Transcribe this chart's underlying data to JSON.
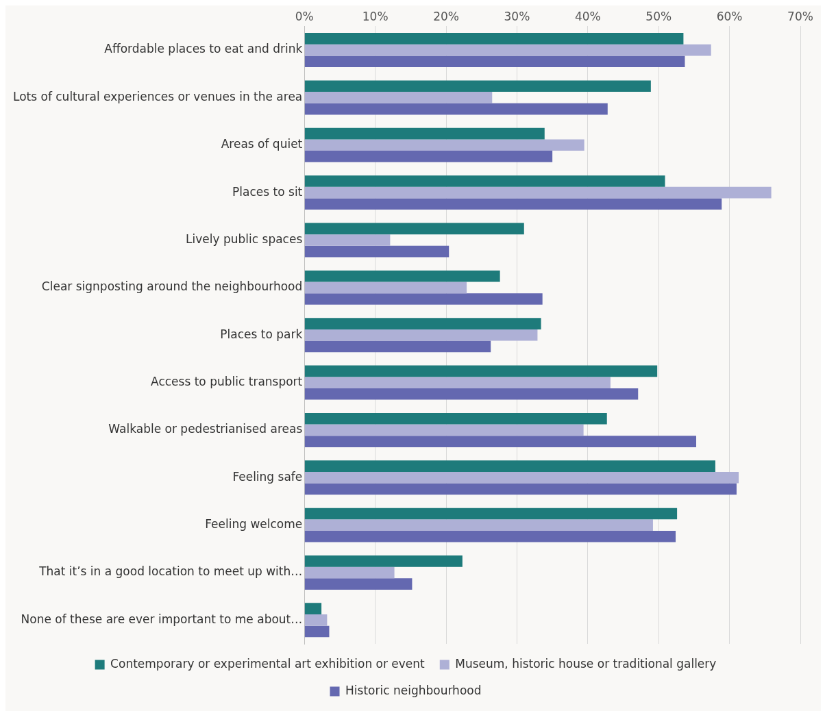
{
  "chart_data": {
    "type": "bar",
    "orientation": "horizontal",
    "categories": [
      "Affordable places to eat and drink",
      "Lots of cultural experiences or venues in the area",
      "Areas of quiet",
      "Places to sit",
      "Lively public spaces",
      "Clear signposting around the neighbourhood",
      "Places to park",
      "Access to public transport",
      "Walkable or pedestrianised areas",
      "Feeling safe",
      "Feeling welcome",
      "That it’s in a good location to meet up with…",
      "None of these are ever important to me about…"
    ],
    "series": [
      {
        "name": "Contemporary or experimental art exhibition or event",
        "color": "#1e7b7b",
        "values": [
          53.5,
          48.9,
          33.9,
          50.9,
          31.0,
          27.6,
          33.4,
          49.8,
          42.7,
          58.0,
          52.6,
          22.3,
          2.4
        ]
      },
      {
        "name": "Museum, historic house or traditional gallery",
        "color": "#aeb0d6",
        "values": [
          57.4,
          26.5,
          39.5,
          65.9,
          12.1,
          22.9,
          32.9,
          43.2,
          39.4,
          61.3,
          49.2,
          12.7,
          3.2
        ]
      },
      {
        "name": "Historic neighbourhood",
        "color": "#6468b0",
        "values": [
          53.7,
          42.8,
          35.0,
          58.9,
          20.4,
          33.6,
          26.3,
          47.1,
          55.3,
          61.0,
          52.4,
          15.2,
          3.5
        ]
      }
    ],
    "xlim": [
      0,
      70
    ],
    "xticks": [
      {
        "value": 0,
        "label": "0%"
      },
      {
        "value": 10,
        "label": "10%"
      },
      {
        "value": 20,
        "label": "20%"
      },
      {
        "value": 30,
        "label": "30%"
      },
      {
        "value": 40,
        "label": "40%"
      },
      {
        "value": 50,
        "label": "50%"
      },
      {
        "value": 60,
        "label": "60%"
      },
      {
        "value": 70,
        "label": "70%"
      }
    ],
    "grid": "x",
    "legend": "bottom"
  }
}
